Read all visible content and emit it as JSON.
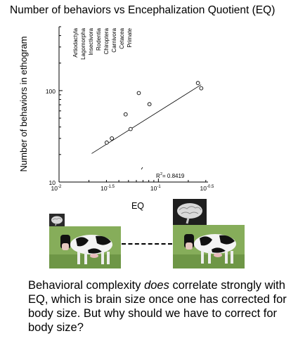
{
  "title": "Number of behaviors vs Encephalization Quotient (EQ)",
  "caption": {
    "part1": "Behavioral complexity ",
    "emphasis": "does",
    "part2": " correlate strongly with EQ, which is brain size once one has corrected for body size. But why should we have to correct for body size?"
  },
  "chart_data": {
    "type": "scatter",
    "title": "Number of behaviors vs Encephalization Quotient (EQ)",
    "xlabel": "EQ",
    "ylabel": "Number of behaviors in ethogram",
    "x_scale": "log",
    "y_scale": "log",
    "xlim": [
      0.01,
      0.316
    ],
    "ylim": [
      10,
      500
    ],
    "x_ticks": [
      {
        "value": 0.01,
        "base": "10",
        "exp": "-2"
      },
      {
        "value": 0.0316,
        "base": "10",
        "exp": "-1.5"
      },
      {
        "value": 0.1,
        "base": "10",
        "exp": "-1"
      },
      {
        "value": 0.316,
        "base": "10",
        "exp": "-0.5"
      }
    ],
    "y_ticks": [
      {
        "value": 10,
        "label": "10"
      },
      {
        "value": 100,
        "label": "100"
      }
    ],
    "orders": [
      "Artiodactyla",
      "Lagomorpha",
      "Insectivora",
      "Rodentia",
      "Chiroptera",
      "Carnivora",
      "Cetacea",
      "Primate"
    ],
    "points": [
      {
        "x": 0.0302,
        "y": 27
      },
      {
        "x": 0.034,
        "y": 30
      },
      {
        "x": 0.0468,
        "y": 55
      },
      {
        "x": 0.0525,
        "y": 38
      },
      {
        "x": 0.0635,
        "y": 94
      },
      {
        "x": 0.0813,
        "y": 71
      },
      {
        "x": 0.25,
        "y": 121
      },
      {
        "x": 0.27,
        "y": 106
      }
    ],
    "trendline": {
      "x": [
        0.0213,
        0.269
      ],
      "y": [
        20.5,
        116
      ]
    },
    "r_squared_label": "R",
    "r_squared_exp": "2",
    "r_squared_value": " = 0.8419",
    "grid": false,
    "legend": "none"
  }
}
